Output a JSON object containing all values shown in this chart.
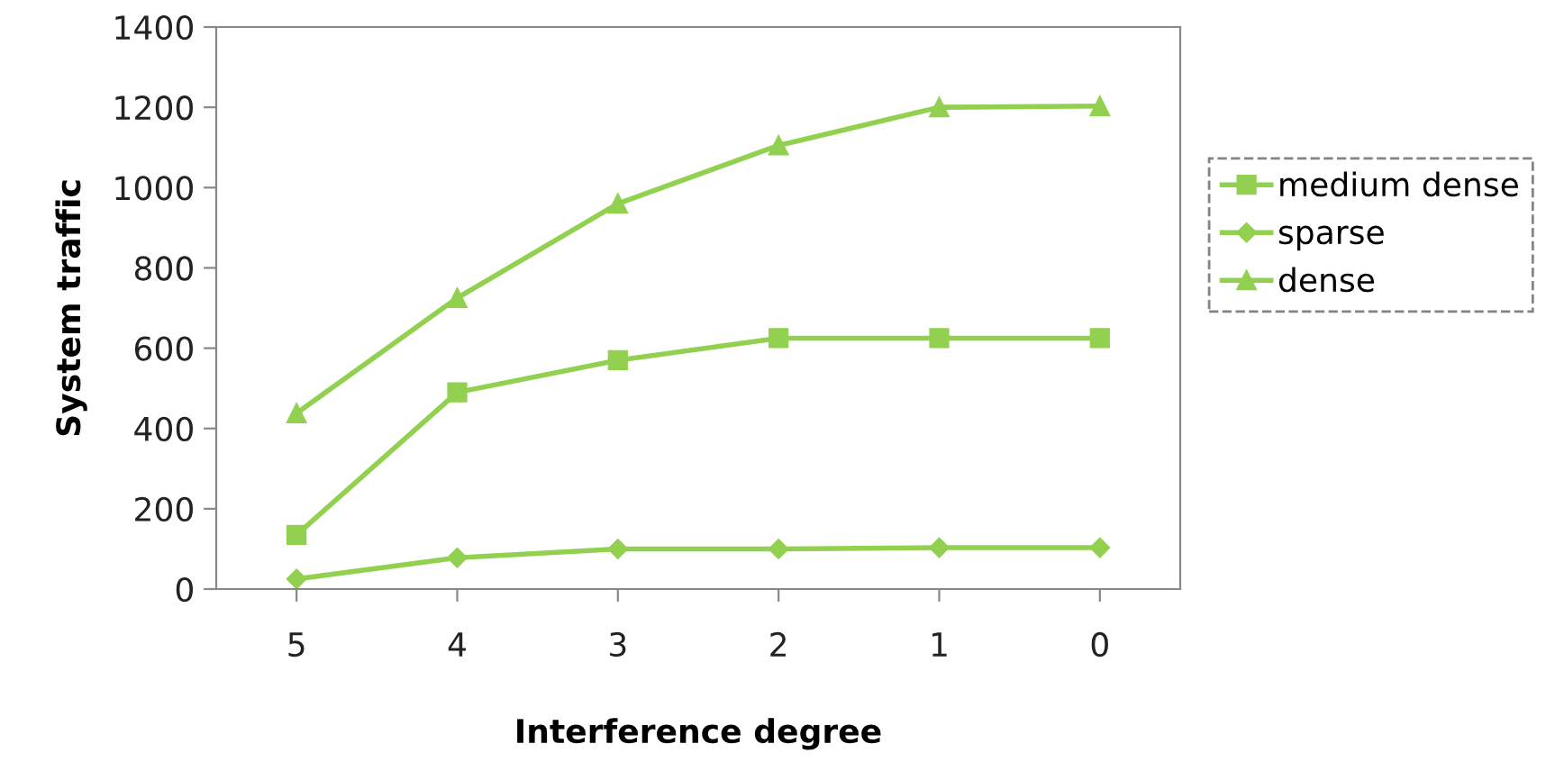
{
  "chart_data": {
    "type": "line",
    "xlabel": "Interference degree",
    "ylabel": "System traffic",
    "categories": [
      "5",
      "4",
      "3",
      "2",
      "1",
      "0"
    ],
    "series": [
      {
        "name": "medium dense",
        "color": "#92d050",
        "marker": "square",
        "values": [
          135,
          490,
          570,
          625,
          625,
          625
        ]
      },
      {
        "name": "sparse",
        "color": "#92d050",
        "marker": "diamond",
        "values": [
          25,
          78,
          100,
          100,
          103,
          103
        ]
      },
      {
        "name": "dense",
        "color": "#92d050",
        "marker": "triangle",
        "values": [
          438,
          725,
          960,
          1105,
          1200,
          1203
        ]
      }
    ],
    "ylim": [
      0,
      1400
    ],
    "yticks": [
      0,
      200,
      400,
      600,
      800,
      1000,
      1200,
      1400
    ],
    "grid": false,
    "legend": "right"
  }
}
